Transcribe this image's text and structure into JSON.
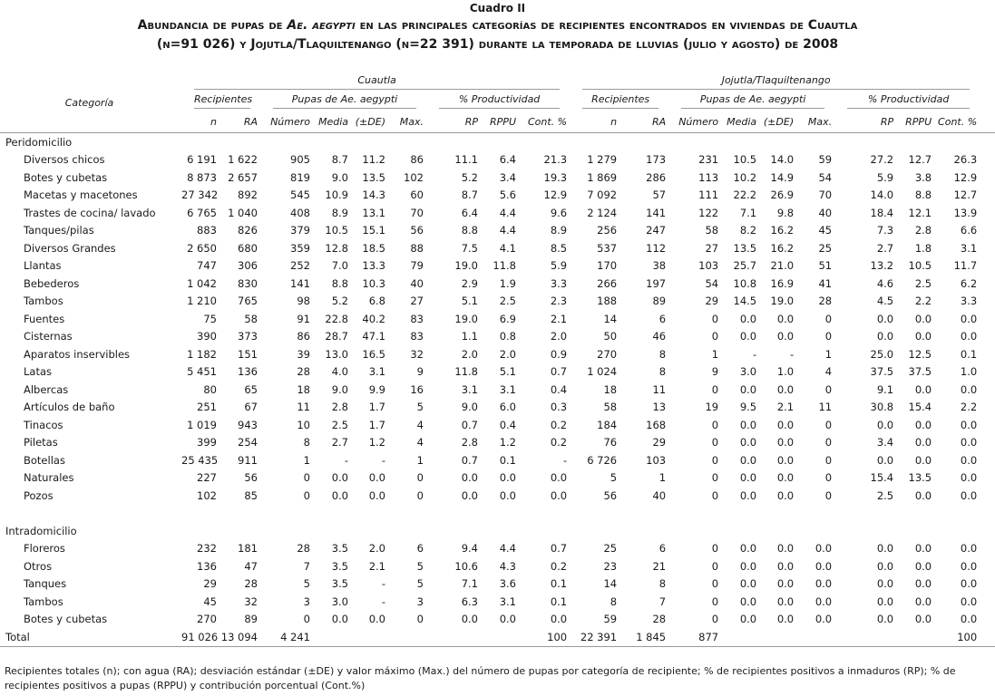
{
  "header": {
    "label": "Cuadro II",
    "title": [
      [
        "Abundancia de pupas de ",
        "Ae. aegypti",
        " en las principales categorías de recipientes encontrados en viviendas de Cuautla"
      ],
      [
        "(n=91 026) y Jojutla/Tlaquiltenango (n=22 391) durante la temporada de lluvias (julio y agosto) de 2008"
      ]
    ]
  },
  "table": {
    "category_header": "Categoría",
    "groups": [
      {
        "name": "Cuautla",
        "subgroups": [
          "Recipientes",
          "Pupas de Ae. aegypti",
          "% Productividad"
        ],
        "columns": [
          "n",
          "RA",
          "Número",
          "Media",
          "(±DE)",
          "Max.",
          "RP",
          "RPPU",
          "Cont. %"
        ]
      },
      {
        "name": "Jojutla/Tlaquiltenango",
        "subgroups": [
          "Recipientes",
          "Pupas de Ae. aegypti",
          "% Productividad"
        ],
        "columns": [
          "n",
          "RA",
          "Número",
          "Media",
          "(±DE)",
          "Max.",
          "RP",
          "RPPU",
          "Cont. %"
        ]
      }
    ],
    "sections": [
      {
        "name": "Peridomicilio",
        "rows": [
          {
            "category": "Diversos chicos",
            "cells": [
              "6 191",
              "1 622",
              "905",
              "8.7",
              "11.2",
              "86",
              "11.1",
              "6.4",
              "21.3",
              "1 279",
              "173",
              "231",
              "10.5",
              "14.0",
              "59",
              "27.2",
              "12.7",
              "26.3"
            ]
          },
          {
            "category": "Botes y cubetas",
            "cells": [
              "8 873",
              "2 657",
              "819",
              "9.0",
              "13.5",
              "102",
              "5.2",
              "3.4",
              "19.3",
              "1 869",
              "286",
              "113",
              "10.2",
              "14.9",
              "54",
              "5.9",
              "3.8",
              "12.9"
            ]
          },
          {
            "category": "Macetas y macetones",
            "cells": [
              "27 342",
              "892",
              "545",
              "10.9",
              "14.3",
              "60",
              "8.7",
              "5.6",
              "12.9",
              "7 092",
              "57",
              "111",
              "22.2",
              "26.9",
              "70",
              "14.0",
              "8.8",
              "12.7"
            ]
          },
          {
            "category": "Trastes de cocina/ lavado",
            "cells": [
              "6 765",
              "1 040",
              "408",
              "8.9",
              "13.1",
              "70",
              "6.4",
              "4.4",
              "9.6",
              "2 124",
              "141",
              "122",
              "7.1",
              "9.8",
              "40",
              "18.4",
              "12.1",
              "13.9"
            ]
          },
          {
            "category": "Tanques/pilas",
            "cells": [
              "883",
              "826",
              "379",
              "10.5",
              "15.1",
              "56",
              "8.8",
              "4.4",
              "8.9",
              "256",
              "247",
              "58",
              "8.2",
              "16.2",
              "45",
              "7.3",
              "2.8",
              "6.6"
            ]
          },
          {
            "category": "Diversos Grandes",
            "cells": [
              "2 650",
              "680",
              "359",
              "12.8",
              "18.5",
              "88",
              "7.5",
              "4.1",
              "8.5",
              "537",
              "112",
              "27",
              "13.5",
              "16.2",
              "25",
              "2.7",
              "1.8",
              "3.1"
            ]
          },
          {
            "category": "Llantas",
            "cells": [
              "747",
              "306",
              "252",
              "7.0",
              "13.3",
              "79",
              "19.0",
              "11.8",
              "5.9",
              "170",
              "38",
              "103",
              "25.7",
              "21.0",
              "51",
              "13.2",
              "10.5",
              "11.7"
            ]
          },
          {
            "category": "Bebederos",
            "cells": [
              "1 042",
              "830",
              "141",
              "8.8",
              "10.3",
              "40",
              "2.9",
              "1.9",
              "3.3",
              "266",
              "197",
              "54",
              "10.8",
              "16.9",
              "41",
              "4.6",
              "2.5",
              "6.2"
            ]
          },
          {
            "category": "Tambos",
            "cells": [
              "1 210",
              "765",
              "98",
              "5.2",
              "6.8",
              "27",
              "5.1",
              "2.5",
              "2.3",
              "188",
              "89",
              "29",
              "14.5",
              "19.0",
              "28",
              "4.5",
              "2.2",
              "3.3"
            ]
          },
          {
            "category": "Fuentes",
            "cells": [
              "75",
              "58",
              "91",
              "22.8",
              "40.2",
              "83",
              "19.0",
              "6.9",
              "2.1",
              "14",
              "6",
              "0",
              "0.0",
              "0.0",
              "0",
              "0.0",
              "0.0",
              "0.0"
            ]
          },
          {
            "category": "Cisternas",
            "cells": [
              "390",
              "373",
              "86",
              "28.7",
              "47.1",
              "83",
              "1.1",
              "0.8",
              "2.0",
              "50",
              "46",
              "0",
              "0.0",
              "0.0",
              "0",
              "0.0",
              "0.0",
              "0.0"
            ]
          },
          {
            "category": "Aparatos inservibles",
            "cells": [
              "1 182",
              "151",
              "39",
              "13.0",
              "16.5",
              "32",
              "2.0",
              "2.0",
              "0.9",
              "270",
              "8",
              "1",
              "-",
              "-",
              "1",
              "25.0",
              "12.5",
              "0.1"
            ]
          },
          {
            "category": "Latas",
            "cells": [
              "5 451",
              "136",
              "28",
              "4.0",
              "3.1",
              "9",
              "11.8",
              "5.1",
              "0.7",
              "1 024",
              "8",
              "9",
              "3.0",
              "1.0",
              "4",
              "37.5",
              "37.5",
              "1.0"
            ]
          },
          {
            "category": "Albercas",
            "cells": [
              "80",
              "65",
              "18",
              "9.0",
              "9.9",
              "16",
              "3.1",
              "3.1",
              "0.4",
              "18",
              "11",
              "0",
              "0.0",
              "0.0",
              "0",
              "9.1",
              "0.0",
              "0.0"
            ]
          },
          {
            "category": "Artículos de baño",
            "cells": [
              "251",
              "67",
              "11",
              "2.8",
              "1.7",
              "5",
              "9.0",
              "6.0",
              "0.3",
              "58",
              "13",
              "19",
              "9.5",
              "2.1",
              "11",
              "30.8",
              "15.4",
              "2.2"
            ]
          },
          {
            "category": "Tinacos",
            "cells": [
              "1 019",
              "943",
              "10",
              "2.5",
              "1.7",
              "4",
              "0.7",
              "0.4",
              "0.2",
              "184",
              "168",
              "0",
              "0.0",
              "0.0",
              "0",
              "0.0",
              "0.0",
              "0.0"
            ]
          },
          {
            "category": "Piletas",
            "cells": [
              "399",
              "254",
              "8",
              "2.7",
              "1.2",
              "4",
              "2.8",
              "1.2",
              "0.2",
              "76",
              "29",
              "0",
              "0.0",
              "0.0",
              "0",
              "3.4",
              "0.0",
              "0.0"
            ]
          },
          {
            "category": "Botellas",
            "cells": [
              "25 435",
              "911",
              "1",
              "-",
              "-",
              "1",
              "0.7",
              "0.1",
              "-",
              "6 726",
              "103",
              "0",
              "0.0",
              "0.0",
              "0",
              "0.0",
              "0.0",
              "0.0"
            ]
          },
          {
            "category": "Naturales",
            "cells": [
              "227",
              "56",
              "0",
              "0.0",
              "0.0",
              "0",
              "0.0",
              "0.0",
              "0.0",
              "5",
              "1",
              "0",
              "0.0",
              "0.0",
              "0",
              "15.4",
              "13.5",
              "0.0"
            ]
          },
          {
            "category": "Pozos",
            "cells": [
              "102",
              "85",
              "0",
              "0.0",
              "0.0",
              "0",
              "0.0",
              "0.0",
              "0.0",
              "56",
              "40",
              "0",
              "0.0",
              "0.0",
              "0",
              "2.5",
              "0.0",
              "0.0"
            ]
          }
        ]
      },
      {
        "name": "Intradomicilio",
        "rows": [
          {
            "category": "Floreros",
            "cells": [
              "232",
              "181",
              "28",
              "3.5",
              "2.0",
              "6",
              "9.4",
              "4.4",
              "0.7",
              "25",
              "6",
              "0",
              "0.0",
              "0.0",
              "0.0",
              "0.0",
              "0.0",
              "0.0"
            ]
          },
          {
            "category": "Otros",
            "cells": [
              "136",
              "47",
              "7",
              "3.5",
              "2.1",
              "5",
              "10.6",
              "4.3",
              "0.2",
              "23",
              "21",
              "0",
              "0.0",
              "0.0",
              "0.0",
              "0.0",
              "0.0",
              "0.0"
            ]
          },
          {
            "category": "Tanques",
            "cells": [
              "29",
              "28",
              "5",
              "3.5",
              "-",
              "5",
              "7.1",
              "3.6",
              "0.1",
              "14",
              "8",
              "0",
              "0.0",
              "0.0",
              "0.0",
              "0.0",
              "0.0",
              "0.0"
            ]
          },
          {
            "category": "Tambos",
            "cells": [
              "45",
              "32",
              "3",
              "3.0",
              "-",
              "3",
              "6.3",
              "3.1",
              "0.1",
              "8",
              "7",
              "0",
              "0.0",
              "0.0",
              "0.0",
              "0.0",
              "0.0",
              "0.0"
            ]
          },
          {
            "category": "Botes y cubetas",
            "cells": [
              "270",
              "89",
              "0",
              "0.0",
              "0.0",
              "0",
              "0.0",
              "0.0",
              "0.0",
              "59",
              "28",
              "0",
              "0.0",
              "0.0",
              "0.0",
              "0.0",
              "0.0",
              "0.0"
            ]
          }
        ]
      }
    ],
    "total": {
      "label": "Total",
      "cells": [
        "91 026",
        "13 094",
        "4 241",
        null,
        null,
        null,
        null,
        null,
        "100",
        "22 391",
        "1 845",
        "877",
        null,
        null,
        null,
        null,
        null,
        "100"
      ]
    }
  },
  "footnote": "Recipientes totales (n); con agua (RA); desviación estándar (±DE) y valor máximo (Max.) del número de pupas por categoría de recipiente; % de recipientes positivos a inmaduros (RP); % de recipientes positivos a pupas (RPPU) y contribución porcentual (Cont.%)"
}
